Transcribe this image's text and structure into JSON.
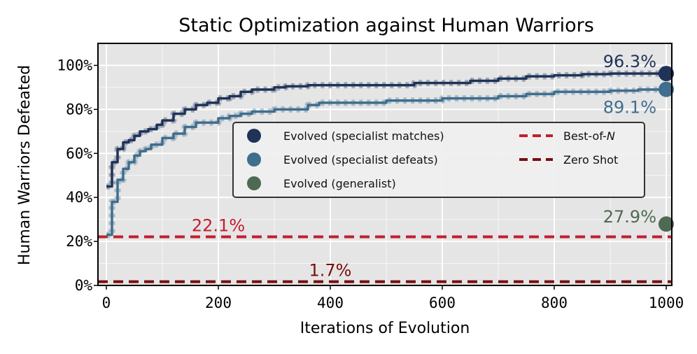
{
  "chart_data": {
    "type": "line",
    "title": "Static Optimization against Human Warriors",
    "xlabel": "Iterations of Evolution",
    "ylabel": "Human Warriors Defeated",
    "xlim": [
      -15,
      1010
    ],
    "ylim": [
      0,
      110
    ],
    "x_ticks": [
      0,
      200,
      400,
      600,
      800,
      1000
    ],
    "y_ticks": [
      0,
      20,
      40,
      60,
      80,
      100
    ],
    "x_tick_labels": [
      "0",
      "200",
      "400",
      "600",
      "800",
      "1000"
    ],
    "y_tick_labels": [
      "0%",
      "20%",
      "40%",
      "60%",
      "80%",
      "100%"
    ],
    "grid": true,
    "legend_position": "center-right",
    "legend": {
      "spec_matches": "Evolved (specialist matches)",
      "spec_defeats": "Evolved (specialist defeats)",
      "generalist": "Evolved (generalist)",
      "best_of_n": "Best-of-",
      "best_of_n_var": "N",
      "zero_shot": "Zero Shot"
    },
    "colors": {
      "spec_matches": "#1f3358",
      "spec_defeats": "#3f6e8e",
      "generalist": "#4e6a52",
      "best_of_n": "#c41e2e",
      "zero_shot": "#7a0d0d"
    },
    "series": [
      {
        "name": "Evolved (specialist matches)",
        "x": [
          0,
          10,
          20,
          30,
          40,
          50,
          60,
          75,
          90,
          100,
          120,
          140,
          160,
          180,
          200,
          220,
          240,
          260,
          280,
          300,
          320,
          340,
          360,
          380,
          400,
          450,
          500,
          550,
          600,
          650,
          700,
          750,
          800,
          850,
          900,
          950,
          1000
        ],
        "values": [
          45,
          56,
          62,
          65,
          66,
          68,
          70,
          71,
          73,
          75,
          78,
          80,
          82,
          83,
          85,
          86,
          88,
          89,
          89,
          90,
          90.5,
          90.5,
          91,
          91,
          91,
          91,
          91,
          92,
          92,
          93,
          94,
          95,
          95.5,
          96,
          96.3,
          96.3,
          96.3
        ]
      },
      {
        "name": "Evolved (specialist defeats)",
        "x": [
          0,
          10,
          20,
          30,
          40,
          50,
          60,
          70,
          80,
          100,
          120,
          140,
          160,
          180,
          200,
          220,
          240,
          260,
          280,
          300,
          320,
          340,
          360,
          380,
          400,
          450,
          500,
          550,
          600,
          650,
          700,
          750,
          800,
          850,
          900,
          950,
          1000
        ],
        "values": [
          23,
          38,
          48,
          53,
          56,
          59,
          61,
          62,
          64,
          67,
          69,
          72,
          74,
          74,
          76,
          77,
          78,
          79,
          79,
          80,
          80,
          80,
          82,
          83,
          83,
          83,
          84,
          84,
          85,
          85,
          86,
          87,
          88,
          88,
          88.5,
          89,
          89.1
        ]
      }
    ],
    "endpoints": {
      "spec_matches": {
        "x": 1000,
        "y": 96.3,
        "label": "96.3%"
      },
      "spec_defeats": {
        "x": 1000,
        "y": 89.1,
        "label": "89.1%"
      },
      "generalist": {
        "x": 1000,
        "y": 27.9,
        "label": "27.9%"
      }
    },
    "reference_lines": {
      "best_of_n": {
        "y": 22.1,
        "label": "22.1%",
        "label_x": 200
      },
      "zero_shot": {
        "y": 1.7,
        "label": "1.7%",
        "label_x": 400
      }
    }
  }
}
